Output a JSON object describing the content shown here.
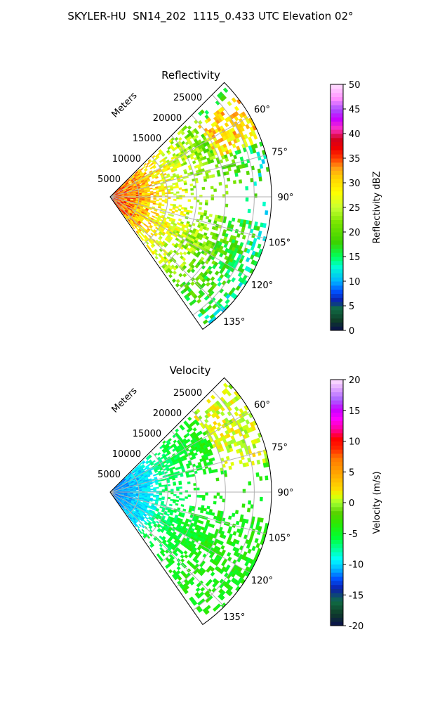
{
  "figure": {
    "suptitle": "SKYLER-HU  SN14_202  1115_0.433 UTC Elevation 02°"
  },
  "chart_data": [
    {
      "type": "heatmap",
      "subtype": "polar-sector (PPI)",
      "title": "Reflectivity",
      "range_label": "Meters",
      "range_ticks": [
        5000,
        10000,
        15000,
        20000,
        25000
      ],
      "range_tick_labels": [
        "5000",
        "10000",
        "15000",
        "20000",
        "25000"
      ],
      "range_lim": [
        0,
        28000
      ],
      "azimuth_lim_deg": [
        45,
        145
      ],
      "azimuth_ticks_deg": [
        60,
        75,
        90,
        105,
        120,
        135
      ],
      "azimuth_tick_labels": [
        "60°",
        "75°",
        "90°",
        "105°",
        "120°",
        "135°"
      ],
      "grid": true,
      "colorbar": {
        "label": "Reflectivity dBZ",
        "range": [
          0,
          50
        ],
        "ticks": [
          0,
          5,
          10,
          15,
          20,
          25,
          30,
          35,
          40,
          45,
          50
        ],
        "tick_labels": [
          "0",
          "5",
          "10",
          "15",
          "20",
          "25",
          "30",
          "35",
          "40",
          "45",
          "50"
        ],
        "colormap": "pyart_NWSRef"
      },
      "pattern_description": "Two dominant echo wedges; near-range values 30–40 dBZ, decreasing to 15–25 dBZ outward, with 30–35 dBZ band near 60°–70° at far range"
    },
    {
      "type": "heatmap",
      "subtype": "polar-sector (PPI)",
      "title": "Velocity",
      "range_label": "Meters",
      "range_ticks": [
        5000,
        10000,
        15000,
        20000,
        25000
      ],
      "range_tick_labels": [
        "5000",
        "10000",
        "15000",
        "20000",
        "25000"
      ],
      "range_lim": [
        0,
        28000
      ],
      "azimuth_lim_deg": [
        45,
        145
      ],
      "azimuth_ticks_deg": [
        60,
        75,
        90,
        105,
        120,
        135
      ],
      "azimuth_tick_labels": [
        "60°",
        "75°",
        "90°",
        "105°",
        "120°",
        "135°"
      ],
      "grid": true,
      "colorbar": {
        "label": "Velocity (m/s)",
        "range": [
          -20,
          20
        ],
        "ticks": [
          -20,
          -15,
          -10,
          -5,
          0,
          5,
          10,
          15,
          20
        ],
        "tick_labels": [
          "-20",
          "-15",
          "-10",
          "-5",
          "0",
          "5",
          "10",
          "15",
          "20"
        ],
        "colormap": "pyart_NWSVel"
      },
      "pattern_description": "Near-range values about -12 m/s, mid-range about -7 m/s, far-range north sector about 0 to +2 m/s"
    }
  ]
}
